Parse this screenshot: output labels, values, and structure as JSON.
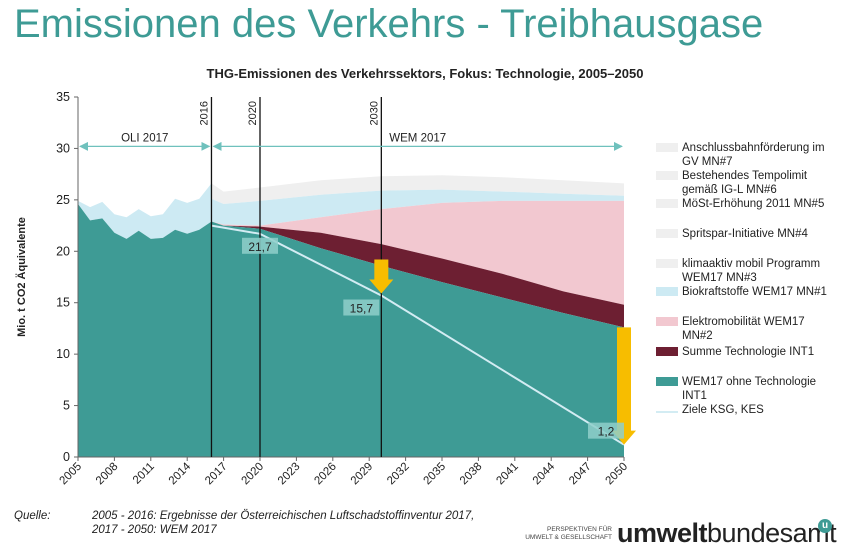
{
  "slide": {
    "title": "Emissionen des Verkehrs - Treibhausgase",
    "chart_title": "THG-Emissionen des Verkehrssektors, Fokus: Technologie, 2005–2050",
    "source_label": "Quelle:",
    "source_line1": "2005 - 2016: Ergebnisse der Österreichischen Luftschadstoffinventur 2017,",
    "source_line2": "2017 - 2050: WEM 2017",
    "logo_small_line1": "PERSPEKTIVEN FÜR",
    "logo_small_line2": "UMWELT & GESELLSCHAFT",
    "logo_brand_bold": "umwelt",
    "logo_brand_regular": "bundesamt",
    "logo_mark": "u"
  },
  "colors": {
    "title": "#3e9b95",
    "base": "#3e9b95",
    "technologie": "#6d1f32",
    "elektro": "#f2c8d0",
    "biokraft": "#cdeaf3",
    "light_gray": "#efefef",
    "ziele": "#d3ecf3",
    "arrow": "#f7bd00",
    "marker_line": "#111111"
  },
  "chart_data": {
    "type": "area",
    "title": "THG-Emissionen des Verkehrssektors, Fokus: Technologie, 2005–2050",
    "ylabel": "Mio. t CO2 Äquivalente",
    "xlabel": "",
    "xlim": [
      2005,
      2050
    ],
    "ylim": [
      0,
      35
    ],
    "yticks": [
      0,
      5,
      10,
      15,
      20,
      25,
      30,
      35
    ],
    "xticks": [
      2005,
      2008,
      2011,
      2014,
      2017,
      2020,
      2023,
      2026,
      2029,
      2032,
      2035,
      2038,
      2041,
      2044,
      2047,
      2050
    ],
    "historic_x": [
      2005,
      2006,
      2007,
      2008,
      2009,
      2010,
      2011,
      2012,
      2013,
      2014,
      2015,
      2016
    ],
    "historic_base": [
      24.6,
      23.0,
      23.2,
      21.8,
      21.2,
      22.0,
      21.2,
      21.3,
      22.1,
      21.7,
      22.1,
      22.9
    ],
    "historic_upper": [
      24.9,
      24.3,
      24.8,
      23.6,
      23.3,
      24.1,
      23.4,
      23.6,
      25.1,
      24.7,
      25.1,
      26.6
    ],
    "projection_x": [
      2016,
      2017,
      2020,
      2025,
      2030,
      2035,
      2040,
      2045,
      2050
    ],
    "projection_base": [
      22.9,
      22.5,
      22.2,
      20.3,
      18.6,
      17.0,
      15.5,
      14.0,
      12.6
    ],
    "projection_technologie": [
      22.9,
      22.5,
      22.4,
      21.8,
      20.7,
      19.3,
      17.8,
      16.1,
      14.8
    ],
    "projection_elektro": [
      22.9,
      22.6,
      22.5,
      23.3,
      24.1,
      24.7,
      24.9,
      24.9,
      24.9
    ],
    "projection_biokraft": [
      25.1,
      24.6,
      24.9,
      25.5,
      25.9,
      26.0,
      25.8,
      25.6,
      25.4
    ],
    "projection_upper": [
      26.6,
      25.8,
      26.2,
      26.9,
      27.3,
      27.4,
      27.2,
      26.9,
      26.6
    ],
    "ziele_x": [
      2016,
      2020,
      2030,
      2050
    ],
    "ziele_y": [
      22.5,
      21.7,
      15.7,
      1.2
    ],
    "ziele_labels": [
      "21,7",
      "15,7",
      "1,2"
    ],
    "ziele_label_years": [
      2020,
      2030,
      2050
    ],
    "vlines": [
      {
        "year": 2016,
        "label": "2016"
      },
      {
        "year": 2020,
        "label": "2020"
      },
      {
        "year": 2030,
        "label": "2030"
      }
    ],
    "spans": [
      {
        "from": 2005,
        "to": 2016,
        "label": "OLI 2017",
        "y": 30.2
      },
      {
        "from": 2016,
        "to": 2050,
        "label": "WEM 2017",
        "y": 30.2
      }
    ],
    "arrows": [
      {
        "year": 2030,
        "from": 19.2,
        "to": 15.9
      },
      {
        "year": 2050,
        "from": 12.6,
        "to": 1.2
      }
    ],
    "legend_position": "right",
    "legend": [
      {
        "label": "Anschlussbahnförderung im GV MN#7",
        "color": "#efefef"
      },
      {
        "label": "Bestehendes Tempolimit gemäß IG-L MN#6",
        "color": "#efefef"
      },
      {
        "label": "MöSt-Erhöhung 2011 MN#5",
        "color": "#efefef"
      },
      {
        "label": "Spritspar-Initiative MN#4",
        "color": "#efefef"
      },
      {
        "label": "klimaaktiv mobil Programm WEM17 MN#3",
        "color": "#efefef"
      },
      {
        "label": "Biokraftstoffe WEM17 MN#1",
        "color": "#cdeaf3"
      },
      {
        "label": "Elektromobilität WEM17 MN#2",
        "color": "#f2c8d0"
      },
      {
        "label": "Summe Technologie INT1",
        "color": "#6d1f32"
      },
      {
        "label": "WEM17 ohne Technologie INT1",
        "color": "#3e9b95"
      },
      {
        "label": "Ziele KSG, KES",
        "color": "#d3ecf3",
        "line": true
      }
    ]
  }
}
